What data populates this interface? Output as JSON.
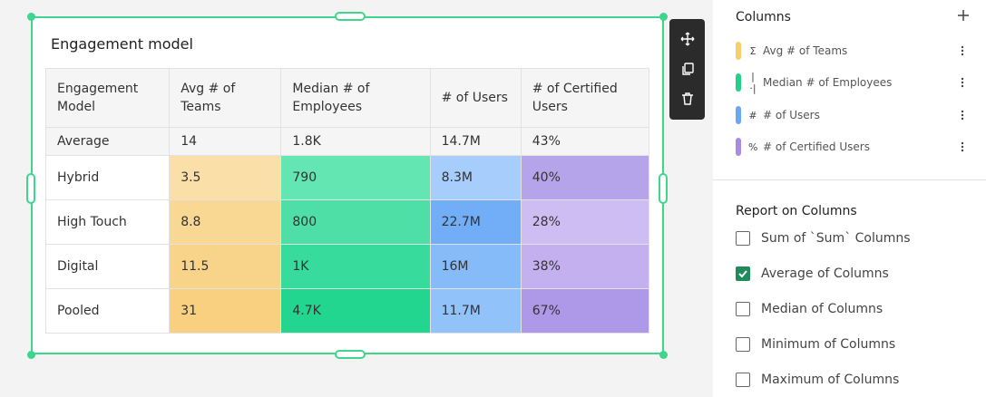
{
  "card": {
    "title": "Engagement model"
  },
  "table": {
    "headers": [
      "Engagement Model",
      "Avg # of Teams",
      "Median # of Employees",
      "# of Users",
      "# of Certified Users"
    ],
    "average_row": [
      "Average",
      "14",
      "1.8K",
      "14.7M",
      "43%"
    ],
    "rows": [
      [
        "Hybrid",
        "3.5",
        "790",
        "8.3M",
        "40%"
      ],
      [
        "High Touch",
        "8.8",
        "800",
        "22.7M",
        "28%"
      ],
      [
        "Digital",
        "11.5",
        "1K",
        "16M",
        "38%"
      ],
      [
        "Pooled",
        "31",
        "4.7K",
        "11.7M",
        "67%"
      ]
    ],
    "cell_colors": [
      [
        "#fae0a8",
        "#64e6b3",
        "#a6cdfb",
        "#b6a4ea"
      ],
      [
        "#f9d894",
        "#4ddfa5",
        "#72aef7",
        "#cdbdf2"
      ],
      [
        "#f8d48b",
        "#37dc9c",
        "#85bbf8",
        "#c4b0ef"
      ],
      [
        "#f8d080",
        "#22d690",
        "#91c2f9",
        "#ae98e8"
      ]
    ]
  },
  "toolbar": {
    "icons": [
      "move-icon",
      "duplicate-icon",
      "delete-icon"
    ]
  },
  "panel": {
    "columns_title": "Columns",
    "columns": [
      {
        "glyph": "Σ",
        "label": "Avg # of Teams",
        "color": "#f5cf6a"
      },
      {
        "glyph": "|·|",
        "label": "Median # of Employees",
        "color": "#25d08a"
      },
      {
        "glyph": "#",
        "label": "# of Users",
        "color": "#6aa8f5"
      },
      {
        "glyph": "%",
        "label": "# of Certified Users",
        "color": "#a98be4"
      }
    ],
    "report_title": "Report on Columns",
    "report_options": [
      {
        "label": "Sum of `Sum` Columns",
        "checked": false
      },
      {
        "label": "Average of Columns",
        "checked": true
      },
      {
        "label": "Median of Columns",
        "checked": false
      },
      {
        "label": "Minimum of Columns",
        "checked": false
      },
      {
        "label": "Maximum of Columns",
        "checked": false
      }
    ],
    "accent_color": "#1f8a5b"
  }
}
